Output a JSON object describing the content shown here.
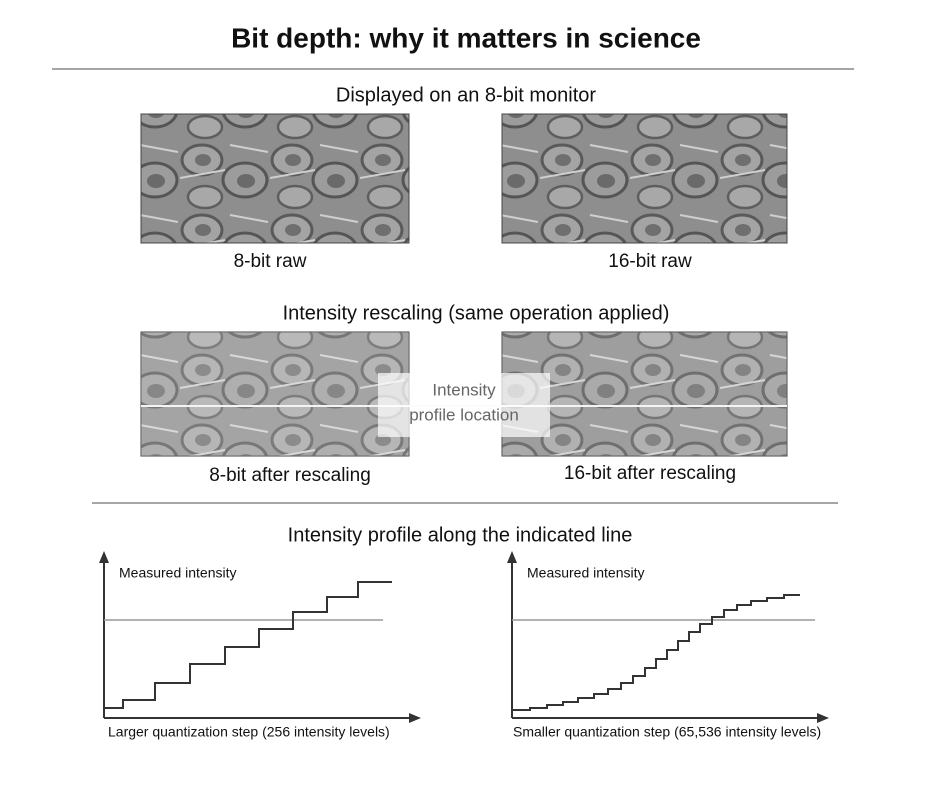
{
  "title": "Bit depth: why it matters in science",
  "sections": [
    {
      "heading": "Displayed on an 8-bit monitor",
      "panels": [
        {
          "caption": "8-bit raw"
        },
        {
          "caption": "16-bit raw"
        }
      ]
    },
    {
      "heading": "Intensity rescaling (same operation applied)",
      "panels": [
        {
          "caption": "8-bit after rescaling"
        },
        {
          "caption": "16-bit after rescaling"
        }
      ],
      "overlay": [
        "Intensity",
        "profile location"
      ]
    },
    {
      "heading": "Intensity profile along the indicated line",
      "plots": [
        {
          "y_label": "Measured intensity",
          "caption": "Larger quantization step (256 intensity levels)"
        },
        {
          "y_label": "Measured intensity",
          "caption": "Smaller quantization step (65,536 intensity levels)"
        }
      ]
    }
  ]
}
